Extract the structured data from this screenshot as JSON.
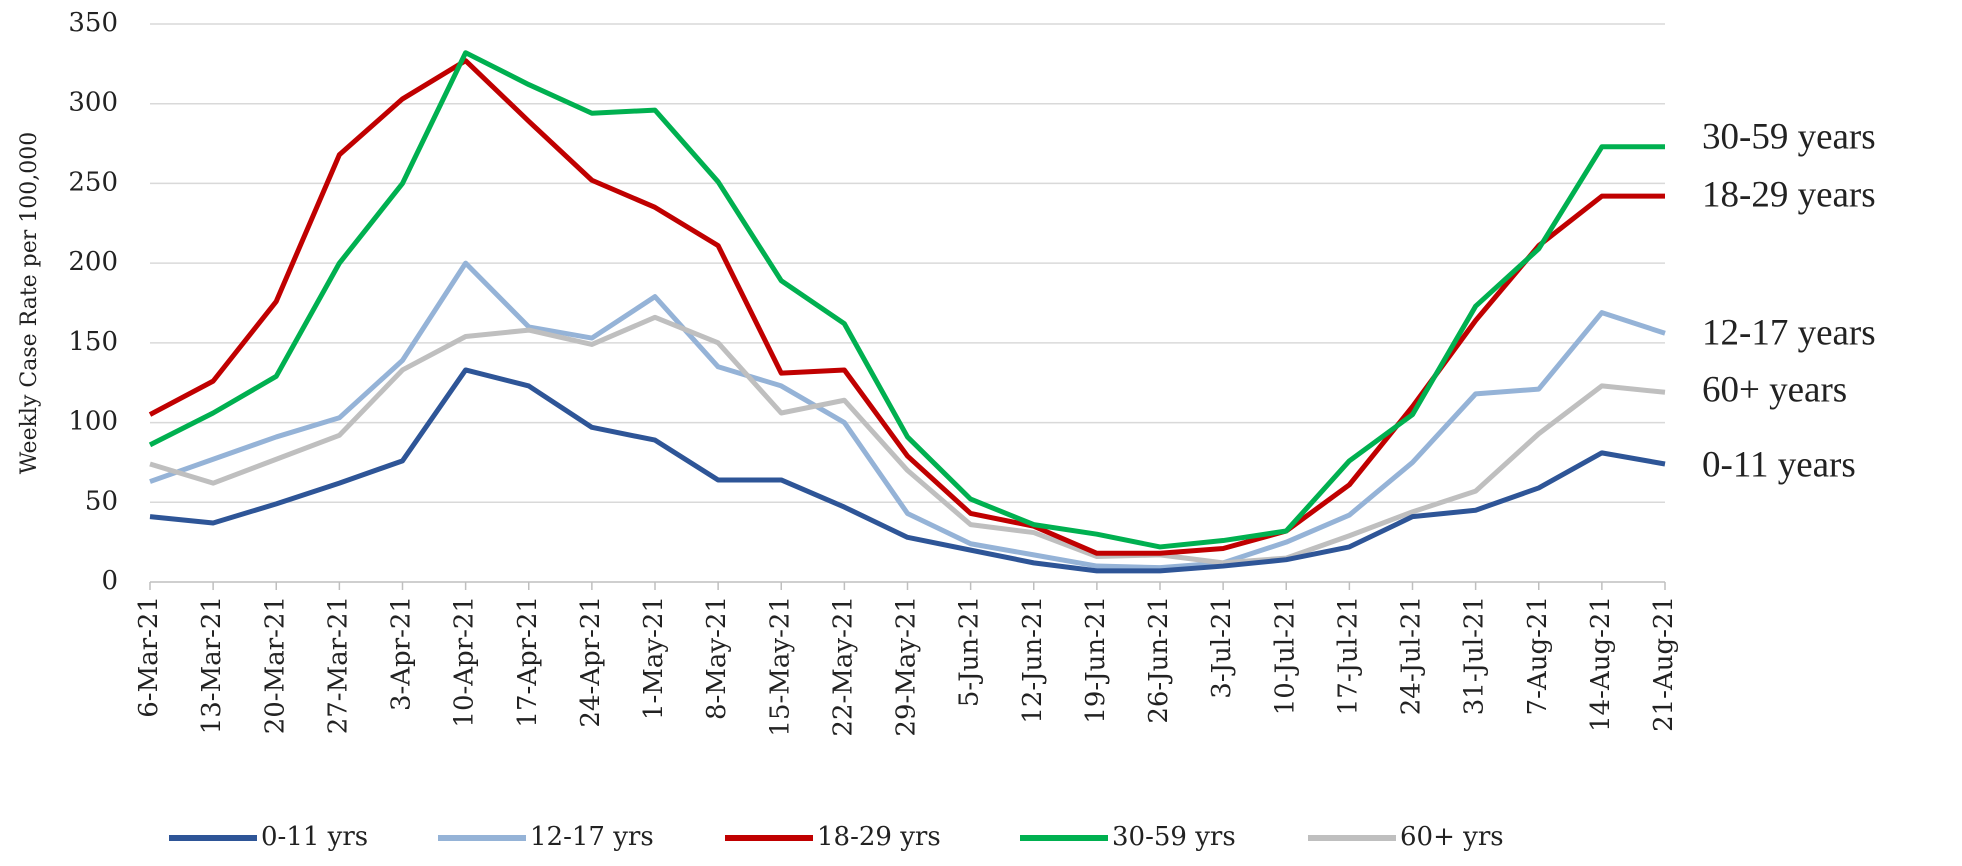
{
  "chart_data": {
    "type": "line",
    "y_axis_label": "Weekly Case Rate per 100,000",
    "x": [
      "6-Mar-21",
      "13-Mar-21",
      "20-Mar-21",
      "27-Mar-21",
      "3-Apr-21",
      "10-Apr-21",
      "17-Apr-21",
      "24-Apr-21",
      "1-May-21",
      "8-May-21",
      "15-May-21",
      "22-May-21",
      "29-May-21",
      "5-Jun-21",
      "12-Jun-21",
      "19-Jun-21",
      "26-Jun-21",
      "3-Jul-21",
      "10-Jul-21",
      "17-Jul-21",
      "24-Jul-21",
      "31-Jul-21",
      "7-Aug-21",
      "14-Aug-21",
      "21-Aug-21"
    ],
    "series": [
      {
        "name": "0-11 yrs",
        "color": "#2e5597",
        "values": [
          41,
          37,
          49,
          62,
          76,
          133,
          123,
          97,
          89,
          64,
          64,
          47,
          28,
          20,
          12,
          7,
          7,
          10,
          14,
          22,
          41,
          45,
          59,
          81,
          74
        ]
      },
      {
        "name": "12-17 yrs",
        "color": "#95b3d7",
        "values": [
          63,
          77,
          91,
          103,
          139,
          200,
          160,
          153,
          179,
          135,
          123,
          100,
          43,
          24,
          17,
          10,
          9,
          12,
          25,
          42,
          75,
          118,
          121,
          169,
          156
        ]
      },
      {
        "name": "18-29 yrs",
        "color": "#c00000",
        "values": [
          105,
          126,
          176,
          268,
          303,
          327,
          289,
          252,
          235,
          211,
          131,
          133,
          79,
          43,
          35,
          18,
          18,
          21,
          32,
          61,
          110,
          164,
          211,
          242,
          242
        ]
      },
      {
        "name": "30-59 yrs",
        "color": "#00b050",
        "values": [
          86,
          106,
          129,
          200,
          250,
          332,
          312,
          294,
          296,
          251,
          189,
          162,
          91,
          52,
          36,
          30,
          22,
          26,
          32,
          76,
          105,
          173,
          209,
          273,
          273
        ]
      },
      {
        "name": "60+ yrs",
        "color": "#bfbfbf",
        "values": [
          74,
          62,
          77,
          92,
          133,
          154,
          158,
          149,
          166,
          150,
          106,
          114,
          70,
          36,
          31,
          16,
          17,
          12,
          15,
          29,
          44,
          57,
          93,
          123,
          119
        ]
      }
    ],
    "annotations": [
      {
        "text": "30-59 years",
        "color": "#00b050"
      },
      {
        "text": "18-29 years",
        "color": "#c00000"
      },
      {
        "text": "12-17 years",
        "color": "#2e75b6"
      },
      {
        "text": "60+ years",
        "color": "#a0a0a0"
      },
      {
        "text": "0-11 years",
        "color": "#1f3f94"
      }
    ],
    "ylim": [
      0,
      350
    ],
    "yticks": [
      0,
      50,
      100,
      150,
      200,
      250,
      300,
      350
    ],
    "grid": true,
    "legend": "bottom"
  }
}
